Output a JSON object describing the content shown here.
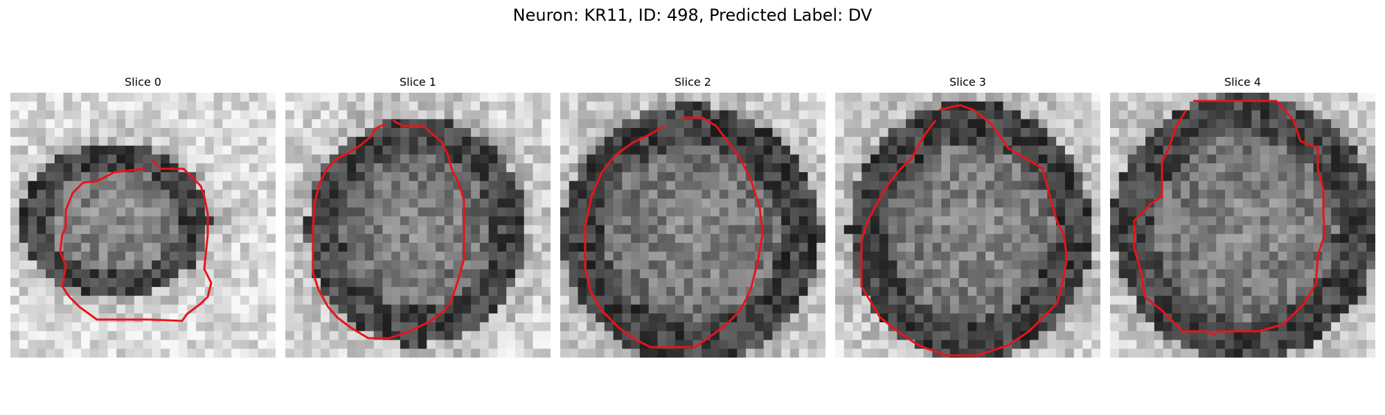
{
  "figure": {
    "title": "Neuron: KR11, ID: 498, Predicted Label: DV"
  },
  "panels": [
    {
      "title": "Slice 0"
    },
    {
      "title": "Slice 1"
    },
    {
      "title": "Slice 2"
    },
    {
      "title": "Slice 3"
    },
    {
      "title": "Slice 4"
    }
  ],
  "colors": {
    "contour": "#e8141a",
    "background": "#ffffff"
  }
}
